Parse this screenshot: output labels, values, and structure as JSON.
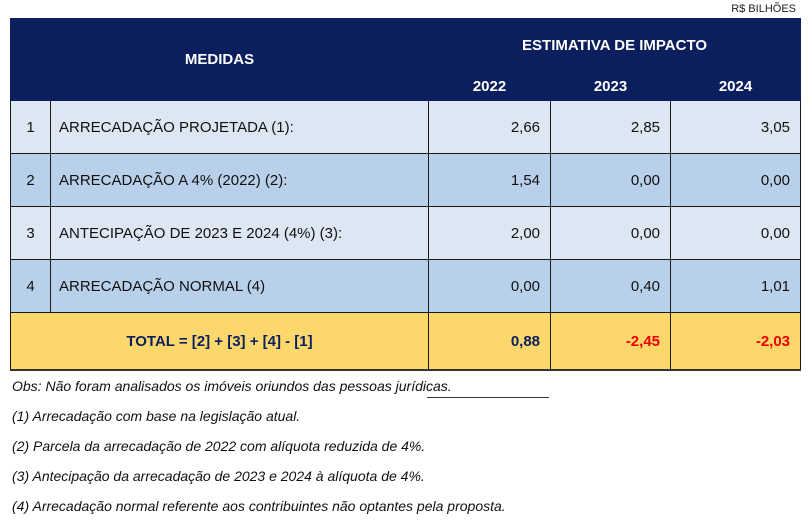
{
  "unit": "R$ BILHÕES",
  "header": {
    "medidas": "MEDIDAS",
    "estimativa": "ESTIMATIVA DE IMPACTO",
    "years": [
      "2022",
      "2023",
      "2024"
    ]
  },
  "rows": [
    {
      "num": "1",
      "label": "ARRECADAÇÃO PROJETADA (1):",
      "values": [
        "2,66",
        "2,85",
        "3,05"
      ]
    },
    {
      "num": "2",
      "label": "ARRECADAÇÃO A 4% (2022) (2):",
      "values": [
        "1,54",
        "0,00",
        "0,00"
      ]
    },
    {
      "num": "3",
      "label": "ANTECIPAÇÃO DE 2023 E 2024 (4%) (3):",
      "values": [
        "2,00",
        "0,00",
        "0,00"
      ]
    },
    {
      "num": "4",
      "label": "ARRECADAÇÃO NORMAL (4)",
      "values": [
        "0,00",
        "0,40",
        "1,01"
      ]
    }
  ],
  "total": {
    "label": "TOTAL = [2] + [3] + [4] - [1]",
    "values": [
      "0,88",
      "-2,45",
      "-2,03"
    ]
  },
  "notes": [
    "Obs:  Não foram analisados os imóveis oriundos das pessoas jurídicas.",
    "(1) Arrecadação com base na legislação atual.",
    "(2) Parcela da arrecadação de 2022 com alíquota reduzida de 4%.",
    "(3) Antecipação da arrecadação de 2023 e 2024 à alíquota de 4%.",
    "(4) Arrecadação normal referente aos contribuintes não optantes pela proposta."
  ],
  "colors": {
    "header": "#0b1f5e",
    "row_light": "#dde7f3",
    "row_dark": "#b9d0ea",
    "total": "#fcd76b",
    "negative": "#e00000"
  }
}
